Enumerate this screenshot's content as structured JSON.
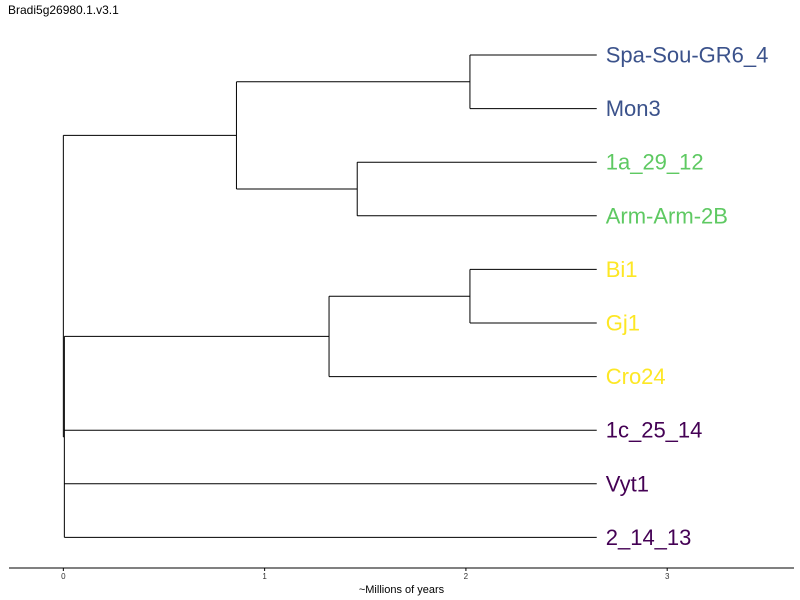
{
  "chart_data": {
    "type": "tree",
    "title": "Bradi5g26980.1.v3.1",
    "xlabel": "~Millions of years",
    "ylabel": "",
    "xlim": [
      0,
      3.63
    ],
    "x_ticks": [
      0,
      1,
      2,
      3
    ],
    "grid": false,
    "leaves": [
      {
        "name": "Spa-Sou-GR6_4",
        "color": "#3b528b"
      },
      {
        "name": "Mon3",
        "color": "#3b528b"
      },
      {
        "name": "1a_29_12",
        "color": "#5ec962"
      },
      {
        "name": "Arm-Arm-2B",
        "color": "#5ec962"
      },
      {
        "name": "Bi1",
        "color": "#fde725"
      },
      {
        "name": "Gj1",
        "color": "#fde725"
      },
      {
        "name": "Cro24",
        "color": "#fde725"
      },
      {
        "name": "1c_25_14",
        "color": "#440154"
      },
      {
        "name": "Vyt1",
        "color": "#440154"
      },
      {
        "name": "2_14_13",
        "color": "#440154"
      }
    ],
    "leaf_depth": 2.65,
    "nodes": [
      {
        "id": "n1",
        "depth": 2.02,
        "children": [
          "Spa-Sou-GR6_4",
          "Mon3"
        ]
      },
      {
        "id": "n2",
        "depth": 1.46,
        "children": [
          "1a_29_12",
          "Arm-Arm-2B"
        ]
      },
      {
        "id": "n3",
        "depth": 0.86,
        "children": [
          "n1",
          "n2"
        ]
      },
      {
        "id": "n4",
        "depth": 2.02,
        "children": [
          "Bi1",
          "Gj1"
        ]
      },
      {
        "id": "n5",
        "depth": 1.32,
        "children": [
          "n4",
          "Cro24"
        ]
      },
      {
        "id": "n6",
        "depth": 0.005,
        "children": [
          "n5",
          "1c_25_14",
          "Vyt1",
          "2_14_13"
        ]
      },
      {
        "id": "root",
        "depth": 0,
        "children": [
          "n3",
          "n6"
        ]
      }
    ]
  }
}
